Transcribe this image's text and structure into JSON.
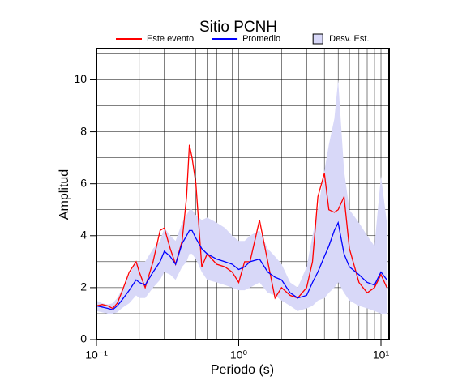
{
  "chart_data": {
    "type": "line",
    "title": "Sitio PCNH",
    "xlabel": "Periodo (s)",
    "ylabel": "Amplitud",
    "xscale": "log",
    "grid": true,
    "legend": "top",
    "xlim": [
      0.1,
      11.4
    ],
    "ylim": [
      0,
      11.2
    ],
    "xticks": [
      {
        "value": 0.1,
        "label": "10⁻¹"
      },
      {
        "value": 1,
        "label": "10⁰"
      },
      {
        "value": 10,
        "label": "10¹"
      }
    ],
    "yticks": [
      0,
      2,
      4,
      6,
      8,
      10
    ],
    "x": [
      0.1,
      0.11,
      0.12,
      0.13,
      0.14,
      0.15,
      0.17,
      0.19,
      0.2,
      0.22,
      0.25,
      0.28,
      0.3,
      0.33,
      0.36,
      0.4,
      0.43,
      0.45,
      0.47,
      0.5,
      0.55,
      0.6,
      0.7,
      0.8,
      0.9,
      1.0,
      1.1,
      1.2,
      1.4,
      1.6,
      1.8,
      2.0,
      2.3,
      2.6,
      3.0,
      3.3,
      3.6,
      4.0,
      4.3,
      4.7,
      5.0,
      5.5,
      6.0,
      7.0,
      8.0,
      9.0,
      10,
      11
    ],
    "series": [
      {
        "name": "Este evento",
        "color": "#ff0000",
        "values": [
          1.3,
          1.35,
          1.3,
          1.2,
          1.4,
          1.8,
          2.6,
          3.0,
          2.6,
          2.0,
          3.0,
          4.2,
          4.3,
          3.5,
          2.9,
          3.8,
          5.5,
          7.5,
          7.0,
          6.0,
          2.8,
          3.3,
          2.9,
          2.8,
          2.6,
          2.2,
          3.0,
          3.0,
          4.6,
          3.0,
          1.6,
          2.0,
          1.7,
          1.6,
          2.0,
          3.0,
          5.5,
          6.4,
          5.0,
          4.9,
          5.0,
          5.5,
          3.5,
          2.2,
          1.8,
          2.0,
          2.5,
          2.0
        ]
      },
      {
        "name": "Promedio",
        "color": "#0000ff",
        "values": [
          1.3,
          1.25,
          1.2,
          1.15,
          1.3,
          1.5,
          1.9,
          2.3,
          2.2,
          2.1,
          2.6,
          3.0,
          3.4,
          3.2,
          2.9,
          3.7,
          4.0,
          4.2,
          4.2,
          3.9,
          3.5,
          3.3,
          3.1,
          3.0,
          2.9,
          2.7,
          2.8,
          3.0,
          3.1,
          2.6,
          2.4,
          2.3,
          1.8,
          1.6,
          1.7,
          2.2,
          2.6,
          3.2,
          3.6,
          4.2,
          4.5,
          3.3,
          2.8,
          2.5,
          2.2,
          2.1,
          2.6,
          2.3
        ]
      },
      {
        "name": "Desv. Est.",
        "color": "#d8d8f8",
        "type": "band",
        "upper": [
          1.5,
          1.4,
          1.35,
          1.4,
          1.6,
          1.9,
          2.5,
          3.0,
          3.0,
          3.0,
          3.5,
          3.8,
          4.3,
          4.0,
          3.8,
          4.5,
          4.8,
          5.0,
          5.0,
          4.8,
          4.6,
          4.7,
          4.5,
          4.3,
          4.0,
          3.8,
          3.8,
          4.0,
          4.2,
          3.5,
          3.2,
          2.9,
          2.2,
          2.0,
          2.8,
          4.0,
          5.0,
          6.5,
          7.5,
          8.5,
          10,
          6.5,
          5.0,
          4.5,
          4.0,
          3.6,
          6.3,
          4.5
        ],
        "lower": [
          1.1,
          1.05,
          1.0,
          1.0,
          1.05,
          1.2,
          1.4,
          1.7,
          1.6,
          1.6,
          2.0,
          2.3,
          2.6,
          2.5,
          2.3,
          2.8,
          3.0,
          3.3,
          3.3,
          3.1,
          2.6,
          2.3,
          2.2,
          2.1,
          2.0,
          1.9,
          1.9,
          2.0,
          2.2,
          1.8,
          1.7,
          1.5,
          1.3,
          1.1,
          1.2,
          1.3,
          1.5,
          1.6,
          1.8,
          2.0,
          2.2,
          1.8,
          1.5,
          1.3,
          1.2,
          1.1,
          1.0,
          1.0
        ]
      }
    ]
  }
}
